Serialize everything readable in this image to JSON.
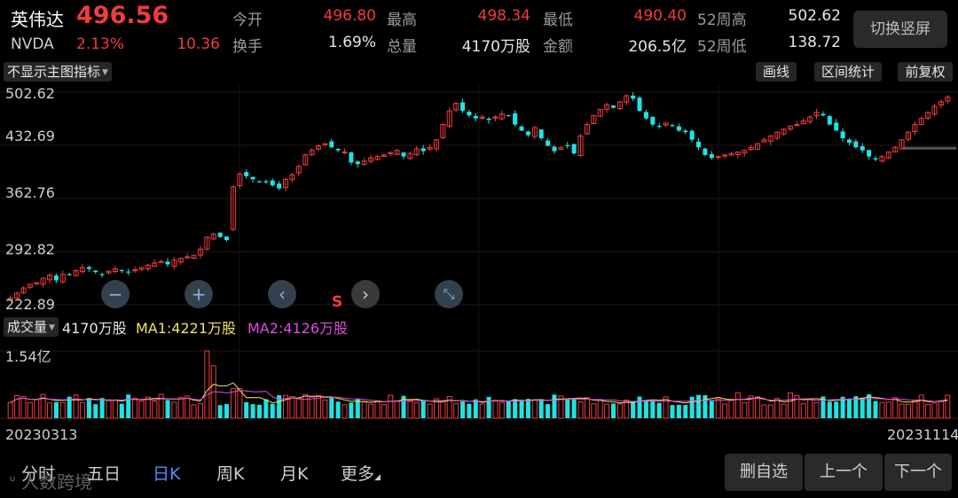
{
  "quote": {
    "name": "英伟达",
    "price": "496.56",
    "code": "NVDA",
    "change_pct": "2.13%",
    "change": "10.36",
    "fields": [
      {
        "label": "今开",
        "value": "496.80",
        "color": "red"
      },
      {
        "label": "最高",
        "value": "498.34",
        "color": "red"
      },
      {
        "label": "最低",
        "value": "490.40",
        "color": "red"
      },
      {
        "label": "52周高",
        "value": "502.62",
        "color": "white"
      },
      {
        "label": "换手",
        "value": "1.69%",
        "color": "white"
      },
      {
        "label": "总量",
        "value": "4170万股",
        "color": "white"
      },
      {
        "label": "金额",
        "value": "206.5亿",
        "color": "white"
      },
      {
        "label": "52周低",
        "value": "138.72",
        "color": "white"
      }
    ],
    "switch_label": "切换竖屏"
  },
  "toolbar": {
    "indicator_dropdown": "不显示主图指标",
    "buttons": [
      "画线",
      "区间统计",
      "前复权"
    ]
  },
  "price_axis": [
    "502.62",
    "432.69",
    "362.76",
    "292.82",
    "222.89"
  ],
  "price_axis_values": [
    502.62,
    432.69,
    362.76,
    292.82,
    222.89
  ],
  "controls": {
    "zoom_out": "−",
    "zoom_in": "+",
    "prev": "‹",
    "next": "›",
    "fit": "⤡",
    "signal_mark": "S"
  },
  "volume": {
    "dropdown": "成交量",
    "total": "4170万股",
    "ma1": "MA1:4221万股",
    "ma2": "MA2:4126万股",
    "axis_top": "1.54亿"
  },
  "dates": {
    "start": "20230313",
    "end": "20231114"
  },
  "tabs": [
    {
      "label": "分时",
      "active": false
    },
    {
      "label": "五日",
      "active": false
    },
    {
      "label": "日K",
      "active": true
    },
    {
      "label": "周K",
      "active": false
    },
    {
      "label": "月K",
      "active": false
    },
    {
      "label": "更多",
      "active": false
    }
  ],
  "actions": [
    "删自选",
    "上一个",
    "下一个"
  ],
  "watermark": "人数跨境",
  "colors": {
    "up": "#f03c3c",
    "down": "#1fe3e3",
    "ma1": "#f2e35a",
    "ma2": "#e04ce0",
    "accent": "#4f8ff7"
  },
  "chart_data": {
    "type": "candlestick",
    "y_range": [
      222.89,
      502.62
    ],
    "volume_max": 154000000,
    "closes": [
      232,
      238,
      245,
      250,
      252,
      258,
      262,
      255,
      263,
      262,
      268,
      272,
      270,
      266,
      262,
      267,
      270,
      268,
      266,
      269,
      272,
      275,
      278,
      280,
      276,
      282,
      284,
      286,
      288,
      296,
      312,
      316,
      312,
      308,
      378,
      395,
      392,
      388,
      385,
      384,
      380,
      376,
      388,
      394,
      405,
      420,
      426,
      432,
      435,
      430,
      426,
      424,
      410,
      408,
      412,
      416,
      418,
      420,
      423,
      426,
      418,
      422,
      428,
      425,
      430,
      440,
      460,
      478,
      488,
      478,
      472,
      468,
      470,
      466,
      470,
      474,
      472,
      460,
      452,
      446,
      456,
      442,
      432,
      425,
      430,
      432,
      422,
      445,
      460,
      472,
      480,
      486,
      482,
      490,
      498,
      494,
      478,
      468,
      460,
      458,
      462,
      458,
      452,
      450,
      440,
      430,
      420,
      416,
      418,
      420,
      422,
      424,
      426,
      430,
      435,
      440,
      445,
      450,
      454,
      458,
      460,
      465,
      470,
      476,
      472,
      460,
      452,
      442,
      436,
      430,
      426,
      418,
      414,
      418,
      424,
      430,
      440,
      450,
      460,
      468,
      476,
      484,
      490,
      496
    ]
  }
}
